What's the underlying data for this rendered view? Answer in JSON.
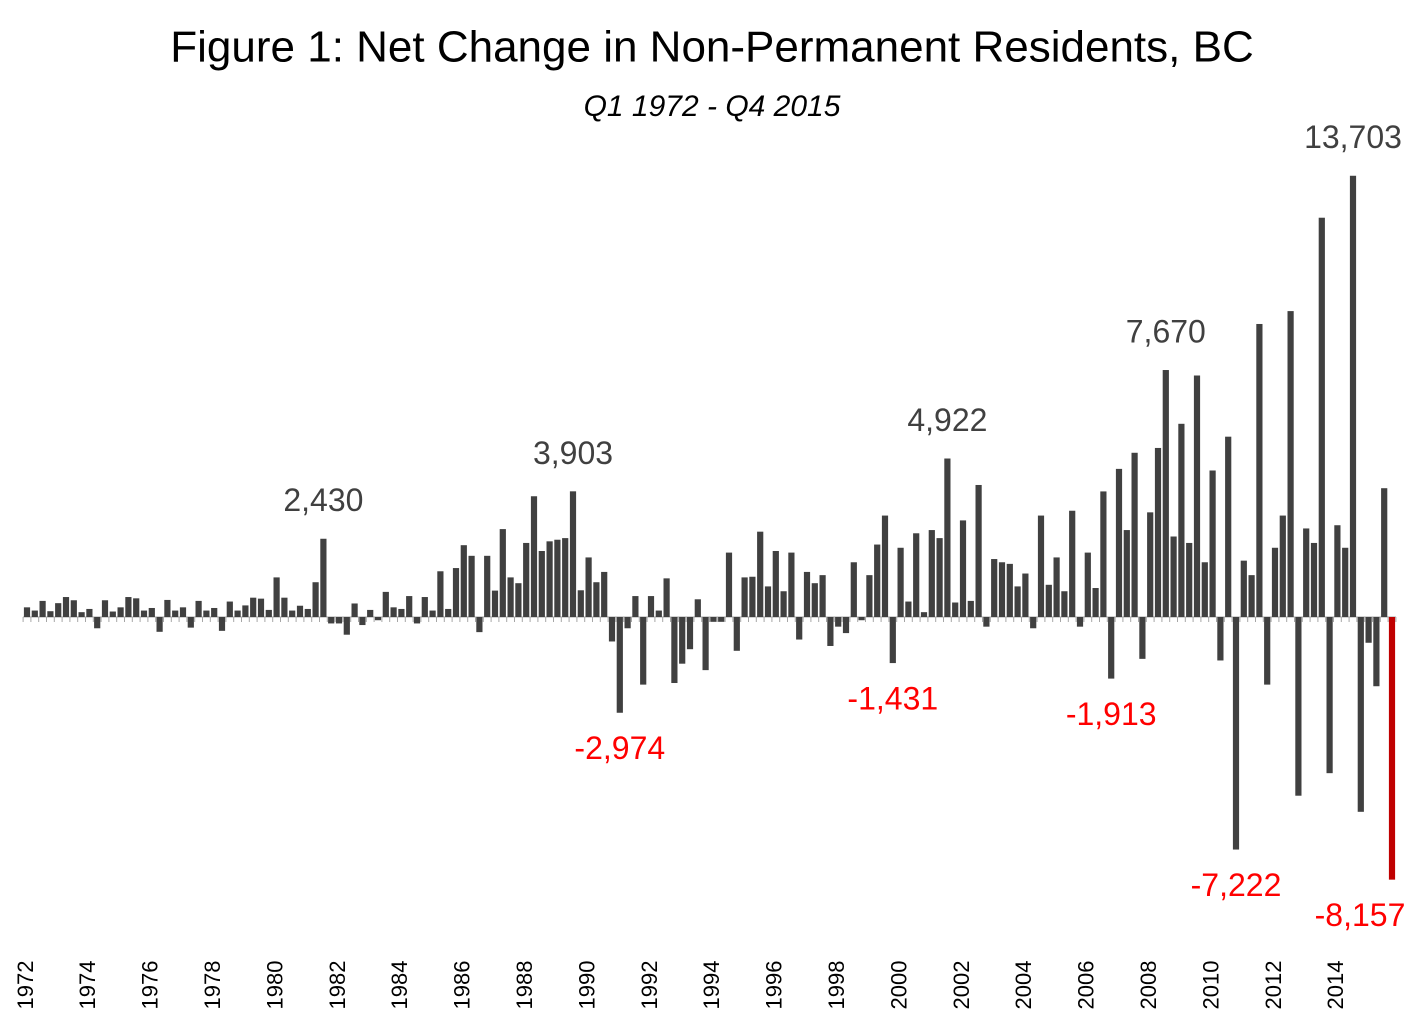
{
  "chart_data": {
    "type": "bar",
    "title": "Figure 1: Net Change in Non-Permanent Residents, BC",
    "subtitle": "Q1 1972 - Q4 2015",
    "color": "#404040",
    "positive_label_color": "#404040",
    "negative_label_color": "#ff0000",
    "categories": [
      "1972",
      null,
      null,
      null,
      null,
      null,
      null,
      null,
      "1974",
      null,
      null,
      null,
      null,
      null,
      null,
      null,
      "1976",
      null,
      null,
      null,
      null,
      null,
      null,
      null,
      "1978",
      null,
      null,
      null,
      null,
      null,
      null,
      null,
      "1980",
      null,
      null,
      null,
      null,
      null,
      null,
      null,
      "1982",
      null,
      null,
      null,
      null,
      null,
      null,
      null,
      "1984",
      null,
      null,
      null,
      null,
      null,
      null,
      null,
      "1986",
      null,
      null,
      null,
      null,
      null,
      null,
      null,
      "1988",
      null,
      null,
      null,
      null,
      null,
      null,
      null,
      "1990",
      null,
      null,
      null,
      null,
      null,
      null,
      null,
      "1992",
      null,
      null,
      null,
      null,
      null,
      null,
      null,
      "1994",
      null,
      null,
      null,
      null,
      null,
      null,
      null,
      "1996",
      null,
      null,
      null,
      null,
      null,
      null,
      null,
      "1998",
      null,
      null,
      null,
      null,
      null,
      null,
      null,
      "2000",
      null,
      null,
      null,
      null,
      null,
      null,
      null,
      "2002",
      null,
      null,
      null,
      null,
      null,
      null,
      null,
      "2004",
      null,
      null,
      null,
      null,
      null,
      null,
      null,
      "2006",
      null,
      null,
      null,
      null,
      null,
      null,
      null,
      "2008",
      null,
      null,
      null,
      null,
      null,
      null,
      null,
      "2010",
      null,
      null,
      null,
      null,
      null,
      null,
      null,
      "2012",
      null,
      null,
      null,
      null,
      null,
      null,
      null,
      "2014",
      null,
      null,
      null,
      null,
      null,
      null,
      null
    ],
    "values": [
      300,
      200,
      500,
      180,
      430,
      620,
      520,
      150,
      250,
      -350,
      520,
      170,
      300,
      620,
      580,
      200,
      280,
      -460,
      530,
      200,
      300,
      -330,
      500,
      200,
      280,
      -430,
      480,
      200,
      360,
      600,
      570,
      220,
      1230,
      600,
      200,
      350,
      250,
      1080,
      2430,
      -200,
      -200,
      -550,
      420,
      -250,
      220,
      -100,
      780,
      300,
      250,
      650,
      -200,
      620,
      200,
      1420,
      250,
      1520,
      2230,
      1900,
      -470,
      1900,
      820,
      2730,
      1230,
      1050,
      2300,
      3750,
      2050,
      2350,
      2400,
      2450,
      3903,
      830,
      1850,
      1080,
      1400,
      -760,
      -2974,
      -350,
      650,
      -2100,
      650,
      200,
      1200,
      -2050,
      -1450,
      -1000,
      550,
      -1650,
      -150,
      -150,
      2000,
      -1050,
      1230,
      1250,
      2650,
      950,
      2050,
      800,
      2000,
      -700,
      1400,
      1050,
      1300,
      -900,
      -300,
      -500,
      1700,
      -100,
      1300,
      2250,
      3150,
      -1431,
      2150,
      480,
      2600,
      150,
      2700,
      2450,
      4922,
      450,
      3000,
      500,
      4100,
      -300,
      1800,
      1700,
      1650,
      950,
      1350,
      -350,
      3150,
      1000,
      1850,
      800,
      3300,
      -300,
      2000,
      900,
      3900,
      -1913,
      4600,
      2700,
      5100,
      -1300,
      3250,
      5250,
      7670,
      2500,
      6000,
      2300,
      7500,
      1700,
      4550,
      -1350,
      5600,
      -7222,
      1750,
      1300,
      9100,
      -2100,
      2150,
      3150,
      9500,
      -5550,
      2750,
      2300,
      12400,
      -4850,
      2850,
      2150,
      13703,
      -6050,
      -800,
      -2150,
      4000,
      -8157
    ],
    "value_labels": [
      null,
      null,
      null,
      null,
      null,
      null,
      null,
      null,
      null,
      null,
      null,
      null,
      null,
      null,
      null,
      null,
      null,
      null,
      null,
      null,
      null,
      null,
      null,
      null,
      null,
      null,
      null,
      null,
      null,
      null,
      null,
      null,
      null,
      null,
      null,
      null,
      null,
      null,
      "2,430",
      null,
      null,
      null,
      null,
      null,
      null,
      null,
      null,
      null,
      null,
      null,
      null,
      null,
      null,
      null,
      null,
      null,
      null,
      null,
      null,
      null,
      null,
      null,
      null,
      null,
      null,
      null,
      null,
      null,
      null,
      null,
      "3,903",
      null,
      null,
      null,
      null,
      null,
      "-2,974",
      null,
      null,
      null,
      null,
      null,
      null,
      null,
      null,
      null,
      null,
      null,
      null,
      null,
      null,
      null,
      null,
      null,
      null,
      null,
      null,
      null,
      null,
      null,
      null,
      null,
      null,
      null,
      null,
      null,
      null,
      null,
      null,
      null,
      null,
      "-1,431",
      null,
      null,
      null,
      null,
      null,
      null,
      "4,922",
      null,
      null,
      null,
      null,
      null,
      null,
      null,
      null,
      null,
      null,
      null,
      null,
      null,
      null,
      null,
      null,
      null,
      null,
      null,
      null,
      "-1,913",
      null,
      null,
      null,
      null,
      null,
      null,
      "7,670",
      null,
      null,
      null,
      null,
      null,
      null,
      null,
      null,
      "-7,222",
      null,
      null,
      null,
      null,
      null,
      null,
      null,
      null,
      null,
      null,
      null,
      null,
      null,
      null,
      "13,703",
      null,
      null,
      null,
      null,
      "-8,157"
    ],
    "colors": [
      "#404040",
      "#404040",
      "#404040",
      "#404040",
      "#404040",
      "#404040",
      "#404040",
      "#404040",
      "#404040",
      "#404040",
      "#404040",
      "#404040",
      "#404040",
      "#404040",
      "#404040",
      "#404040",
      "#404040",
      "#404040",
      "#404040",
      "#404040",
      "#404040",
      "#404040",
      "#404040",
      "#404040",
      "#404040",
      "#404040",
      "#404040",
      "#404040",
      "#404040",
      "#404040",
      "#404040",
      "#404040",
      "#404040",
      "#404040",
      "#404040",
      "#404040",
      "#404040",
      "#404040",
      "#404040",
      "#404040",
      "#404040",
      "#404040",
      "#404040",
      "#404040",
      "#404040",
      "#404040",
      "#404040",
      "#404040",
      "#404040",
      "#404040",
      "#404040",
      "#404040",
      "#404040",
      "#404040",
      "#404040",
      "#404040",
      "#404040",
      "#404040",
      "#404040",
      "#404040",
      "#404040",
      "#404040",
      "#404040",
      "#404040",
      "#404040",
      "#404040",
      "#404040",
      "#404040",
      "#404040",
      "#404040",
      "#404040",
      "#404040",
      "#404040",
      "#404040",
      "#404040",
      "#404040",
      "#404040",
      "#404040",
      "#404040",
      "#404040",
      "#404040",
      "#404040",
      "#404040",
      "#404040",
      "#404040",
      "#404040",
      "#404040",
      "#404040",
      "#404040",
      "#404040",
      "#404040",
      "#404040",
      "#404040",
      "#404040",
      "#404040",
      "#404040",
      "#404040",
      "#404040",
      "#404040",
      "#404040",
      "#404040",
      "#404040",
      "#404040",
      "#404040",
      "#404040",
      "#404040",
      "#404040",
      "#404040",
      "#404040",
      "#404040",
      "#404040",
      "#404040",
      "#404040",
      "#404040",
      "#404040",
      "#404040",
      "#404040",
      "#404040",
      "#404040",
      "#404040",
      "#404040",
      "#404040",
      "#404040",
      "#404040",
      "#404040",
      "#404040",
      "#404040",
      "#404040",
      "#404040",
      "#404040",
      "#404040",
      "#404040",
      "#404040",
      "#404040",
      "#404040",
      "#404040",
      "#404040",
      "#404040",
      "#404040",
      "#404040",
      "#404040",
      "#404040",
      "#404040",
      "#404040",
      "#404040",
      "#404040",
      "#404040",
      "#404040",
      "#404040",
      "#404040",
      "#404040",
      "#404040",
      "#404040",
      "#404040",
      "#404040",
      "#404040",
      "#404040",
      "#404040",
      "#404040",
      "#404040",
      "#404040",
      "#404040",
      "#404040",
      "#404040",
      "#404040",
      "#404040",
      "#404040",
      "#404040",
      "#404040",
      "#404040",
      "#404040",
      "#404040",
      "#404040",
      "#404040",
      "#404040",
      "#c00000"
    ]
  }
}
